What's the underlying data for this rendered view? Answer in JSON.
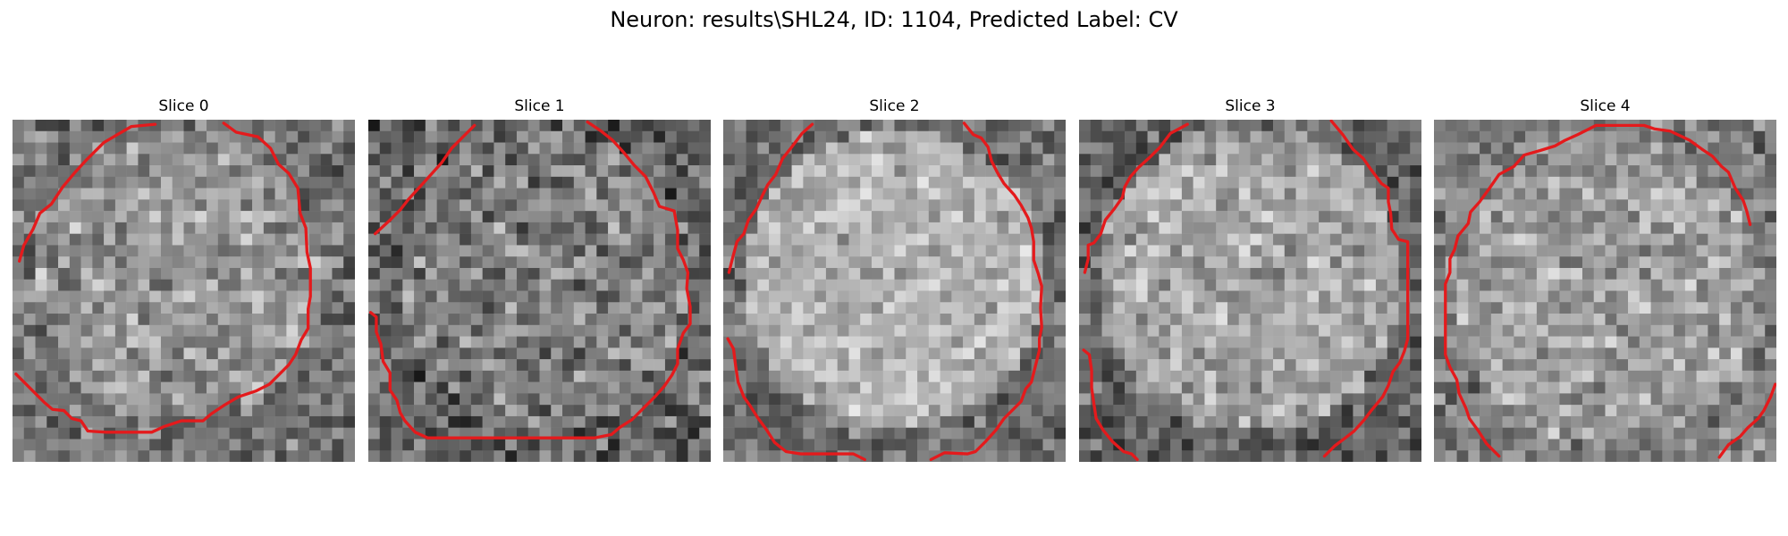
{
  "figure": {
    "title": "Neuron: results\\SHL24, ID: 1104, Predicted Label: CV"
  },
  "colors": {
    "contour": "#e41a1c",
    "background": "#ffffff"
  },
  "panels": [
    {
      "title": "Slice 0"
    },
    {
      "title": "Slice 1"
    },
    {
      "title": "Slice 2"
    },
    {
      "title": "Slice 3"
    },
    {
      "title": "Slice 4"
    }
  ]
}
